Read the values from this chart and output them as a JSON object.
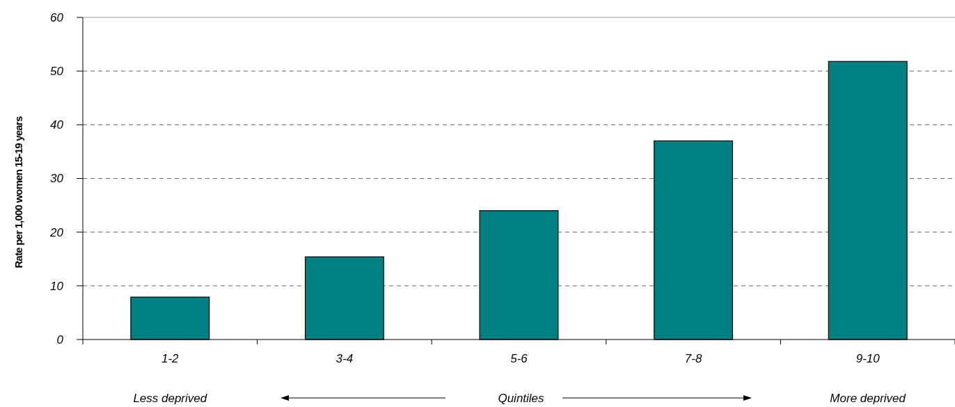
{
  "chart_data": {
    "type": "bar",
    "categories": [
      "1-2",
      "3-4",
      "5-6",
      "7-8",
      "9-10"
    ],
    "values": [
      7.9,
      15.4,
      24,
      37,
      51.8
    ],
    "color": "#008080",
    "ylabel": "Rate per 1,000 women 15-19 years",
    "xlabel": "Quintiles",
    "annotations": [
      "Less deprived",
      "More deprived"
    ],
    "ylim": [
      0,
      60
    ],
    "yticks": [
      0,
      10,
      20,
      30,
      40,
      50,
      60
    ],
    "grid": "y",
    "line_style": "dashed"
  }
}
